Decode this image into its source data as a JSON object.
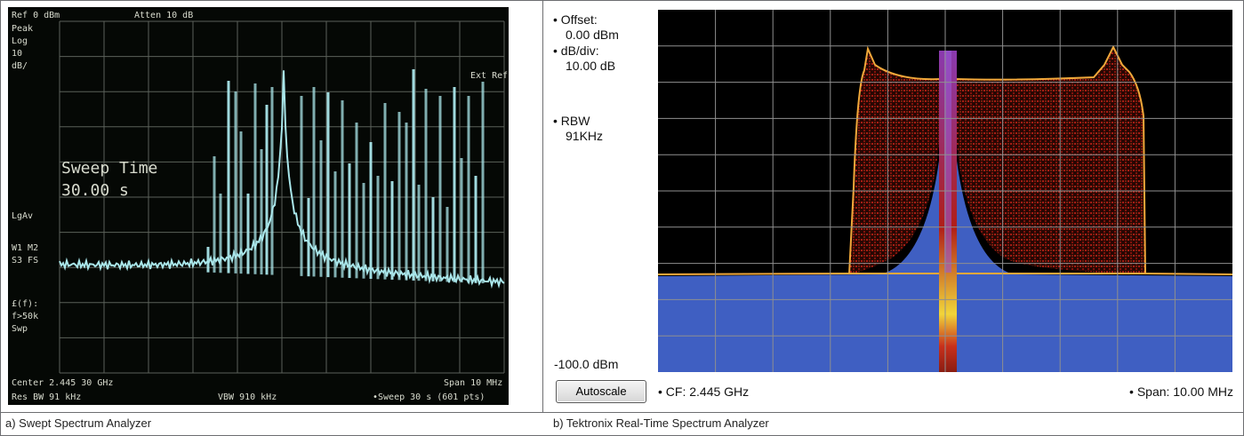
{
  "left_panel": {
    "caption": "a) Swept Spectrum Analyzer",
    "screen": {
      "ref_level": "Ref 0 dBm",
      "attenuation": "Atten 10 dB",
      "side_labels": [
        "Peak",
        "Log",
        "10",
        "dB/",
        "LgAv",
        "W1 M2",
        "S3 FS",
        "£(f):",
        "f>50k",
        "Swp"
      ],
      "ext_ref": "Ext Ref",
      "sweep_time_label": "Sweep Time",
      "sweep_time_value": "30.00  s",
      "center": "Center 2.445 30 GHz",
      "span": "Span 10 MHz",
      "res_bw": "Res BW 91 kHz",
      "vbw": "VBW 910 kHz",
      "sweep": "•Sweep 30 s (601 pts)"
    }
  },
  "right_panel": {
    "caption": "b) Tektronix Real-Time Spectrum Analyzer",
    "offset_label": "• Offset:",
    "offset_value": "0.00 dBm",
    "dbdiv_label": "• dB/div:",
    "dbdiv_value": "10.00 dB",
    "rbw_label": "• RBW",
    "rbw_value": "91KHz",
    "ref_bottom": "-100.0 dBm",
    "autoscale_button": "Autoscale",
    "center_freq": "• CF: 2.445 GHz",
    "span": "• Span: 10.00 MHz"
  },
  "colors": {
    "swept_trace": "#a9e6ea",
    "swept_bg": "#050805",
    "rta_fill": "#3f5fc2",
    "rta_density": "#c3221a",
    "rta_envelope": "#f0a83a"
  }
}
